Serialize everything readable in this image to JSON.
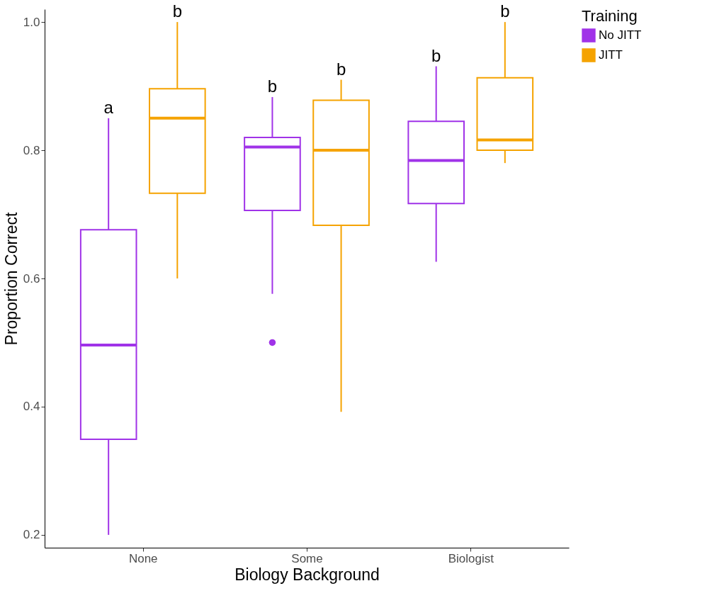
{
  "chart_data": {
    "type": "box",
    "xlabel": "Biology Background",
    "ylabel": "Proportion Correct",
    "legend_title": "Training",
    "legend": "right",
    "grid": false,
    "categories": [
      "None",
      "Some",
      "Biologist"
    ],
    "ylim": [
      0.18,
      1.02
    ],
    "yticks": [
      0.2,
      0.4,
      0.6,
      0.8,
      {
        "value": 1.0,
        "label": "1.0"
      }
    ],
    "series": [
      {
        "name": "No JITT",
        "color": "#a033e8",
        "boxes": [
          {
            "low": 0.2,
            "q1": 0.349,
            "median": 0.496,
            "q3": 0.676,
            "high": 0.85
          },
          {
            "low": 0.576,
            "q1": 0.706,
            "median": 0.805,
            "q3": 0.82,
            "high": 0.883,
            "outliers": [
              0.5
            ]
          },
          {
            "low": 0.626,
            "q1": 0.717,
            "median": 0.784,
            "q3": 0.845,
            "high": 0.931
          }
        ]
      },
      {
        "name": "JITT",
        "color": "#f5a300",
        "boxes": [
          {
            "low": 0.6,
            "q1": 0.733,
            "median": 0.85,
            "q3": 0.896,
            "high": 1.0
          },
          {
            "low": 0.392,
            "q1": 0.683,
            "median": 0.8,
            "q3": 0.878,
            "high": 0.91
          },
          {
            "low": 0.78,
            "q1": 0.8,
            "median": 0.816,
            "q3": 0.913,
            "high": 1.0
          }
        ]
      }
    ],
    "annotations": [
      "a",
      "b",
      "b",
      "b",
      "b",
      "b"
    ]
  }
}
